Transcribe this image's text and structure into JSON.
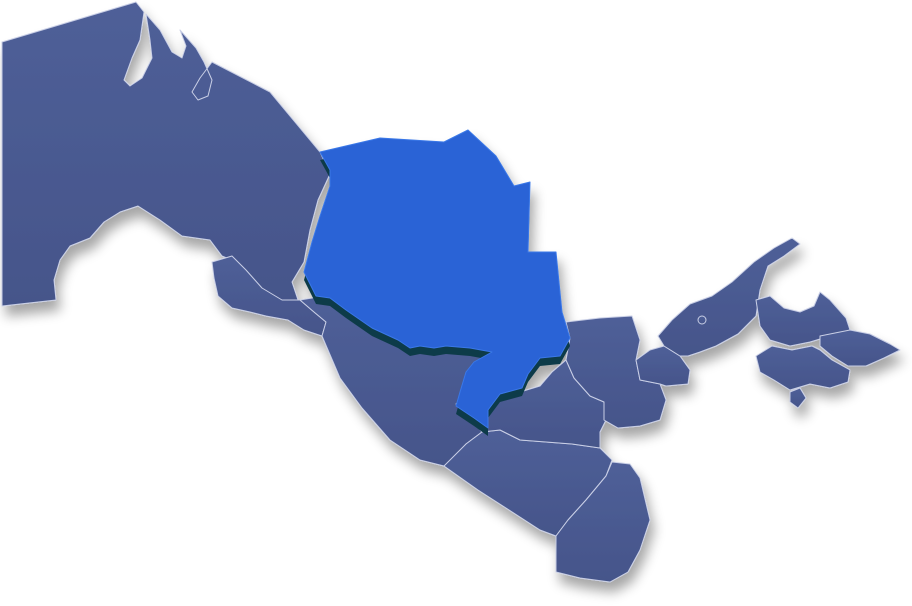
{
  "map": {
    "base_color": "#45558a",
    "base_color_light": "#4f5f98",
    "highlight_color": "#2a64d6",
    "highlight_depth_color": "#0f3a4a",
    "shadow_color": "#9aa3c7",
    "border_color": "#c9cfe6",
    "selected_region": "navoiy-region"
  }
}
